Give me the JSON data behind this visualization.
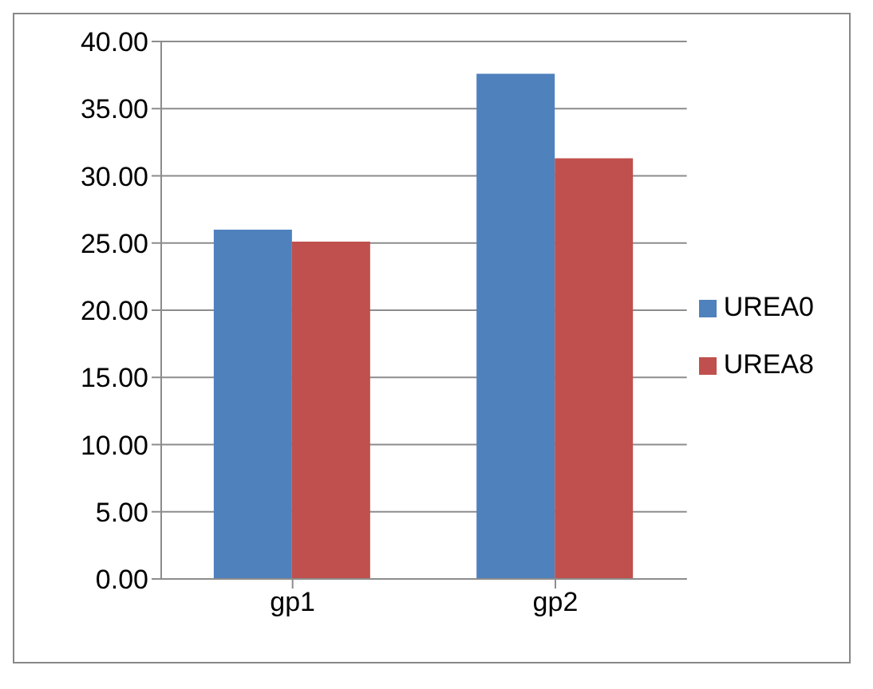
{
  "chart_data": {
    "type": "bar",
    "categories": [
      "gp1",
      "gp2"
    ],
    "series": [
      {
        "name": "UREA0",
        "color": "#4f81bd",
        "values": [
          26.0,
          37.6
        ]
      },
      {
        "name": "UREA8",
        "color": "#c0504d",
        "values": [
          25.1,
          31.3
        ]
      }
    ],
    "ylim": [
      0,
      40
    ],
    "yticks": [
      {
        "value": 0,
        "label": "0.00"
      },
      {
        "value": 5,
        "label": "5.00"
      },
      {
        "value": 10,
        "label": "10.00"
      },
      {
        "value": 15,
        "label": "15.00"
      },
      {
        "value": 20,
        "label": "20.00"
      },
      {
        "value": 25,
        "label": "25.00"
      },
      {
        "value": 30,
        "label": "30.00"
      },
      {
        "value": 35,
        "label": "35.00"
      },
      {
        "value": 40,
        "label": "40.00"
      }
    ],
    "grid": "y",
    "legend": "right"
  }
}
